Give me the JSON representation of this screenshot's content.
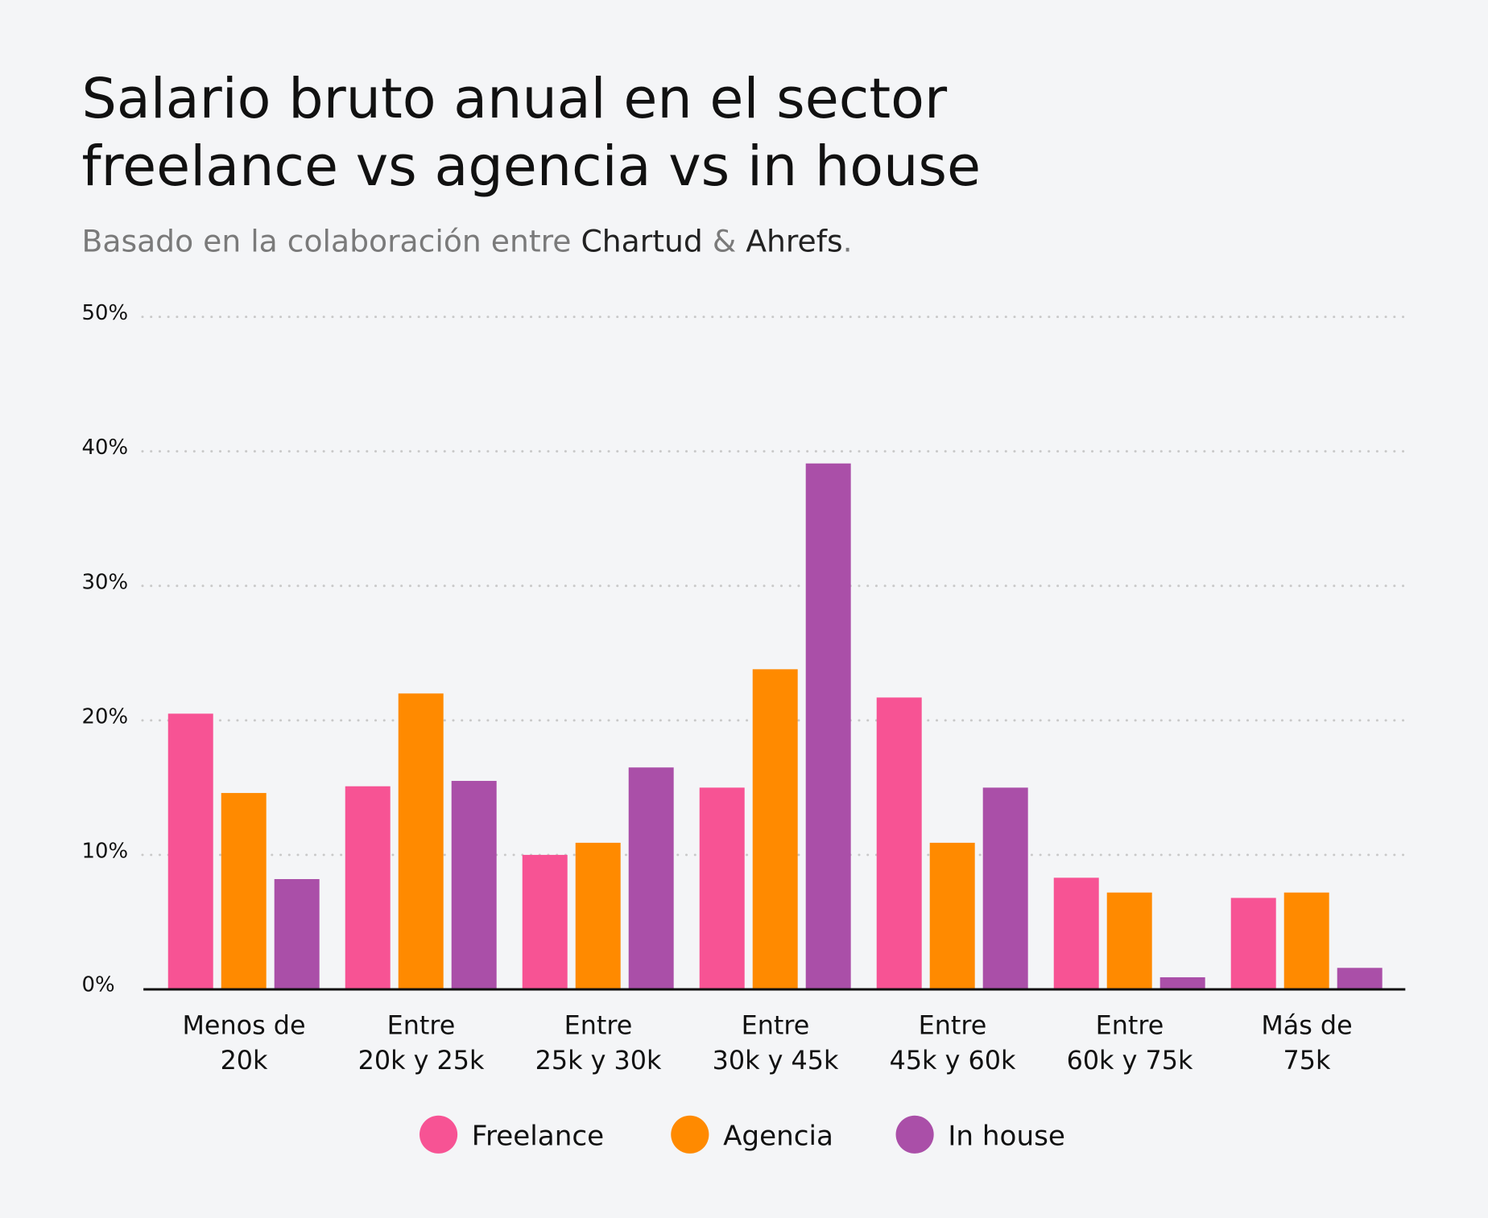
{
  "title_lines": [
    "Salario bruto anual en el sector",
    "freelance vs agencia vs in house"
  ],
  "subtitle": {
    "prefix": "Basado en la colaboración entre ",
    "brand1": "Chartud",
    "amp": " & ",
    "brand2": "Ahrefs",
    "suffix": "."
  },
  "chart_data": {
    "type": "bar",
    "title": "Salario bruto anual en el sector freelance vs agencia vs in house",
    "categories": [
      [
        "Menos de",
        "20k"
      ],
      [
        "Entre",
        "20k y 25k"
      ],
      [
        "Entre",
        "25k y 30k"
      ],
      [
        "Entre",
        "30k y 45k"
      ],
      [
        "Entre",
        "45k y 60k"
      ],
      [
        "Entre",
        "60k y 75k"
      ],
      [
        "Más de",
        "75k"
      ]
    ],
    "series": [
      {
        "name": "Freelance",
        "color": "#F75394",
        "values": [
          20.5,
          15.1,
          10.0,
          15.0,
          21.7,
          8.3,
          6.8
        ]
      },
      {
        "name": "Agencia",
        "color": "#FF8A00",
        "values": [
          14.6,
          22.0,
          10.9,
          23.8,
          10.9,
          7.2,
          7.2
        ]
      },
      {
        "name": "In house",
        "color": "#AA4FA8",
        "values": [
          8.2,
          15.5,
          16.5,
          39.1,
          15.0,
          0.9,
          1.6
        ]
      }
    ],
    "ylim": [
      0,
      50
    ],
    "yticks": [
      "0%",
      "10%",
      "20%",
      "30%",
      "40%",
      "50%"
    ],
    "grid": true,
    "legend": "bottom"
  }
}
